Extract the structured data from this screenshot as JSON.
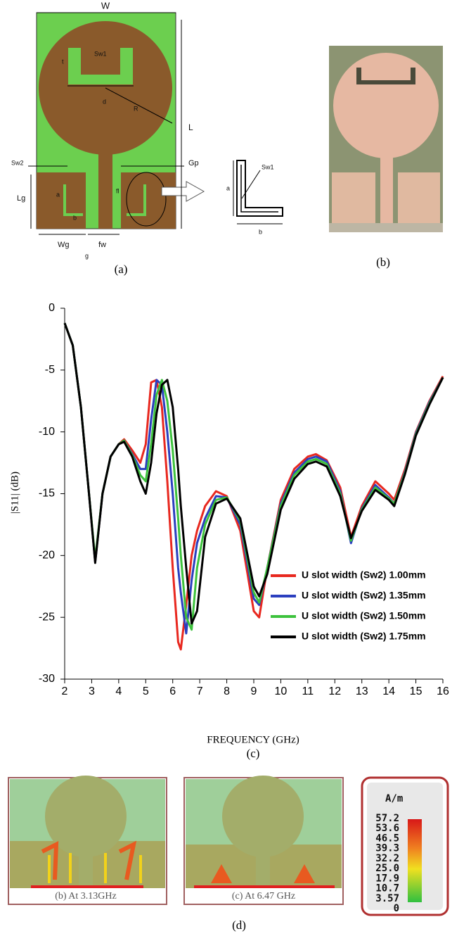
{
  "figure_a": {
    "caption": "(a)",
    "labels": [
      "W",
      "L",
      "Sw2",
      "t",
      "d",
      "R",
      "Sw1",
      "Gp",
      "Lg",
      "a",
      "b",
      "fl",
      "Wg",
      "fw",
      "g"
    ],
    "inset_labels": [
      "a",
      "Sw1",
      "b"
    ]
  },
  "figure_b": {
    "caption": "(b)"
  },
  "chart_data": {
    "type": "line",
    "caption": "(c)",
    "x_label": "FREQUENCY (GHz)",
    "y_label": "|S11| (dB)",
    "xlim": [
      2,
      16
    ],
    "ylim": [
      -30,
      0
    ],
    "xticks": [
      2,
      3,
      4,
      5,
      6,
      7,
      8,
      9,
      10,
      11,
      12,
      13,
      14,
      15,
      16
    ],
    "yticks": [
      0,
      -5,
      -10,
      -15,
      -20,
      -25,
      -30
    ],
    "grid": false,
    "legend": "lower right",
    "x": [
      2,
      2.3,
      2.6,
      2.9,
      3.13,
      3.4,
      3.7,
      4,
      4.2,
      4.5,
      4.8,
      5,
      5.2,
      5.4,
      5.6,
      5.8,
      6,
      6.2,
      6.3,
      6.5,
      6.7,
      6.9,
      7.2,
      7.6,
      8,
      8.5,
      9,
      9.2,
      9.5,
      10,
      10.5,
      11,
      11.3,
      11.7,
      12.2,
      12.6,
      13,
      13.5,
      14,
      14.2,
      14.6,
      15,
      15.5,
      16
    ],
    "series": [
      {
        "name": "U slot width (Sw2) 1.00mm",
        "color": "#e8281f",
        "values": [
          -1.2,
          -3,
          -8,
          -15,
          -20.5,
          -15,
          -12,
          -11,
          -10.6,
          -11.5,
          -12.5,
          -11,
          -6,
          -5.8,
          -8,
          -14,
          -21,
          -27,
          -27.6,
          -24,
          -20,
          -18,
          -16,
          -14.8,
          -15.2,
          -18,
          -24.5,
          -25,
          -21,
          -15.5,
          -13,
          -12,
          -11.8,
          -12.3,
          -14.5,
          -18.5,
          -16,
          -14,
          -15,
          -15.5,
          -13,
          -10,
          -7.5,
          -5.5
        ]
      },
      {
        "name": "U slot width (Sw2) 1.35mm",
        "color": "#2b3fbf",
        "values": [
          -1.2,
          -3,
          -8,
          -15,
          -20.5,
          -15,
          -12,
          -11,
          -10.7,
          -11.8,
          -13,
          -13,
          -9,
          -5.8,
          -6.2,
          -10,
          -15,
          -21,
          -23,
          -26.3,
          -22,
          -19,
          -17,
          -15.2,
          -15.3,
          -17.5,
          -23.5,
          -24,
          -21,
          -15.8,
          -13.3,
          -12.2,
          -12,
          -12.4,
          -14.8,
          -19,
          -16.2,
          -14.3,
          -15.3,
          -15.8,
          -13.2,
          -10.1,
          -7.6,
          -5.6
        ]
      },
      {
        "name": "U slot width (Sw2) 1.50mm",
        "color": "#3dc23d",
        "values": [
          -1.2,
          -3,
          -8,
          -15,
          -20.3,
          -15,
          -12,
          -11,
          -10.7,
          -11.9,
          -13.5,
          -14,
          -11,
          -7,
          -5.8,
          -7.5,
          -11.5,
          -17,
          -20,
          -25,
          -26,
          -21,
          -17.5,
          -15.5,
          -15.3,
          -17.2,
          -23,
          -23.8,
          -21,
          -16,
          -13.5,
          -12.4,
          -12.2,
          -12.6,
          -15,
          -18.8,
          -16.3,
          -14.5,
          -15.4,
          -15.8,
          -13.3,
          -10.2,
          -7.7,
          -5.6
        ]
      },
      {
        "name": "U slot width (Sw2) 1.75mm",
        "color": "#000000",
        "values": [
          -1.2,
          -3,
          -8,
          -15,
          -20.6,
          -15,
          -12,
          -11,
          -10.8,
          -12,
          -14,
          -15,
          -12.5,
          -8.5,
          -6.2,
          -5.8,
          -8,
          -13,
          -16,
          -21,
          -25.5,
          -24.5,
          -18.5,
          -15.8,
          -15.4,
          -17,
          -22.5,
          -23.3,
          -21.5,
          -16.3,
          -13.8,
          -12.6,
          -12.4,
          -12.8,
          -15.2,
          -18.6,
          -16.4,
          -14.7,
          -15.5,
          -16,
          -13.4,
          -10.3,
          -7.8,
          -5.6
        ]
      }
    ]
  },
  "figure_d": {
    "caption": "(d)",
    "panels": [
      "(b) At 3.13GHz",
      "(c) At 6.47 GHz"
    ],
    "colorbar": {
      "unit": "A/m",
      "labels": [
        "57.2",
        "53.6",
        "46.5",
        "39.3",
        "32.2",
        "25.0",
        "17.9",
        "10.7",
        "3.57",
        "0"
      ]
    }
  }
}
